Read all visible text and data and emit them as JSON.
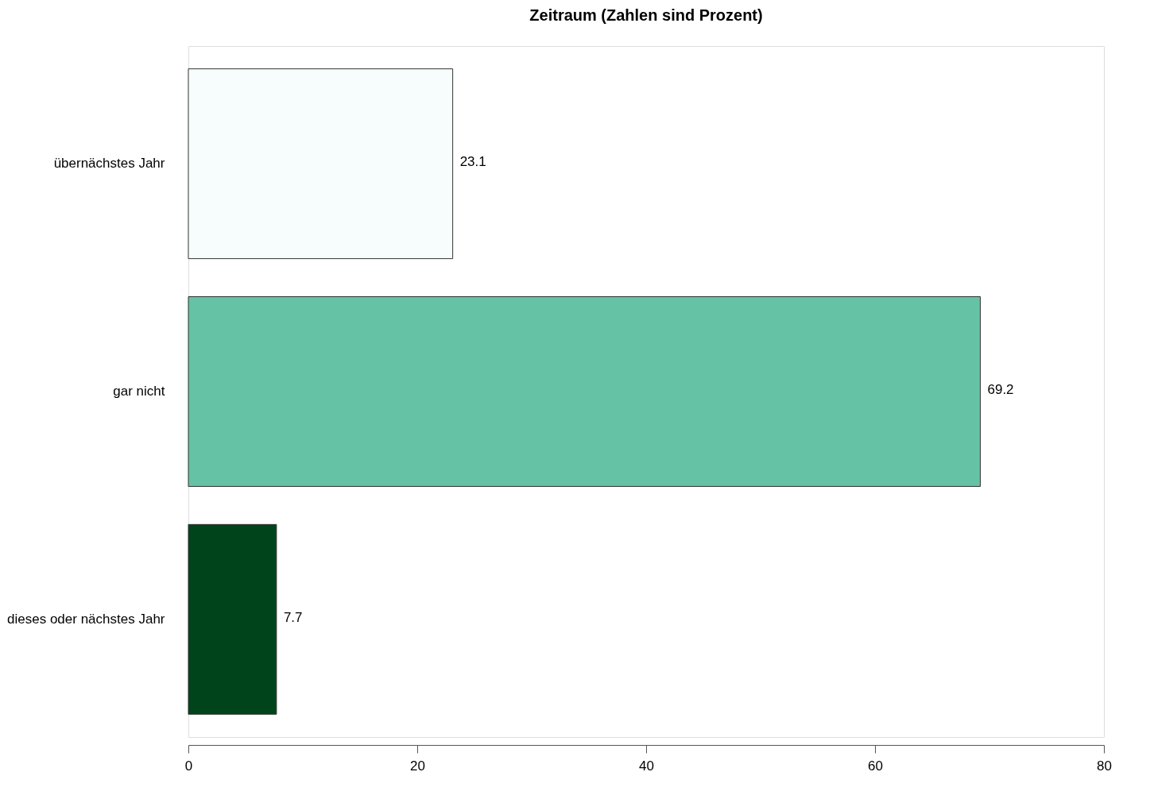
{
  "chart_data": {
    "type": "bar",
    "orientation": "horizontal",
    "title": "Zeitraum (Zahlen sind Prozent)",
    "categories": [
      "übernächstes Jahr",
      "gar nicht",
      "dieses oder nächstes Jahr"
    ],
    "values": [
      23.1,
      69.2,
      7.7
    ],
    "colors": [
      "#f7fcfd",
      "#66c2a4",
      "#00441b"
    ],
    "xlim": [
      0,
      80
    ],
    "xticks": [
      0,
      20,
      40,
      60,
      80
    ],
    "data_labels": true,
    "grid": false
  }
}
